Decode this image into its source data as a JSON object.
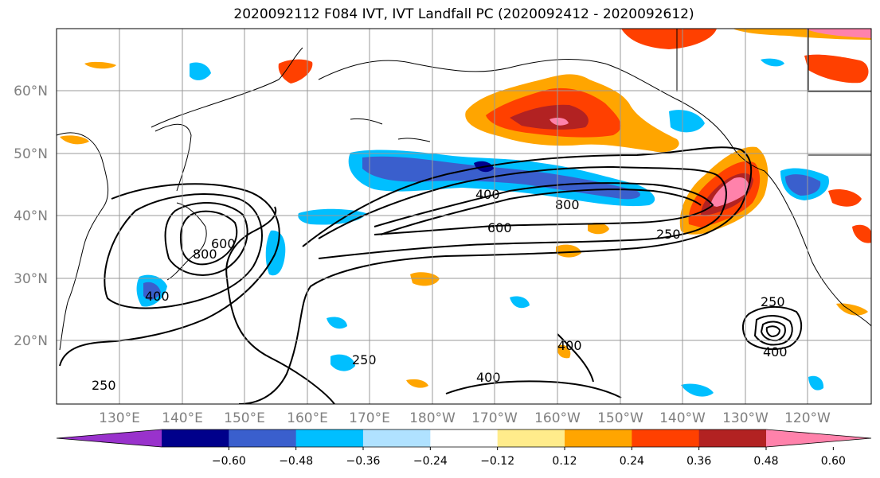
{
  "title": "2020092112 F084 IVT, IVT Landfall PC (2020092412 - 2020092612)",
  "latitude_labels": [
    "60°N",
    "50°N",
    "40°N",
    "30°N",
    "20°N"
  ],
  "longitude_labels": [
    "130°E",
    "140°E",
    "150°E",
    "160°E",
    "170°E",
    "180°W",
    "170°W",
    "160°W",
    "150°W",
    "140°W",
    "130°W",
    "120°W"
  ],
  "colorbar": {
    "tick_labels": [
      "−0.60",
      "−0.48",
      "−0.36",
      "−0.24",
      "−0.12",
      "0.12",
      "0.24",
      "0.36",
      "0.48",
      "0.60"
    ],
    "colors": [
      "#9932cc",
      "#00008b",
      "#3a5fcd",
      "#00bfff",
      "#b0e2ff",
      "#ffffff",
      "#ffec8b",
      "#ffa500",
      "#ff4000",
      "#b22222",
      "#ff82ab"
    ]
  },
  "contour_labels": [
    "400",
    "800",
    "600",
    "250",
    "400",
    "800",
    "600",
    "400",
    "250",
    "250",
    "400",
    "250",
    "400"
  ],
  "colors": {
    "land_outline": "#000000",
    "grid": "#999999",
    "contour": "#000000"
  }
}
